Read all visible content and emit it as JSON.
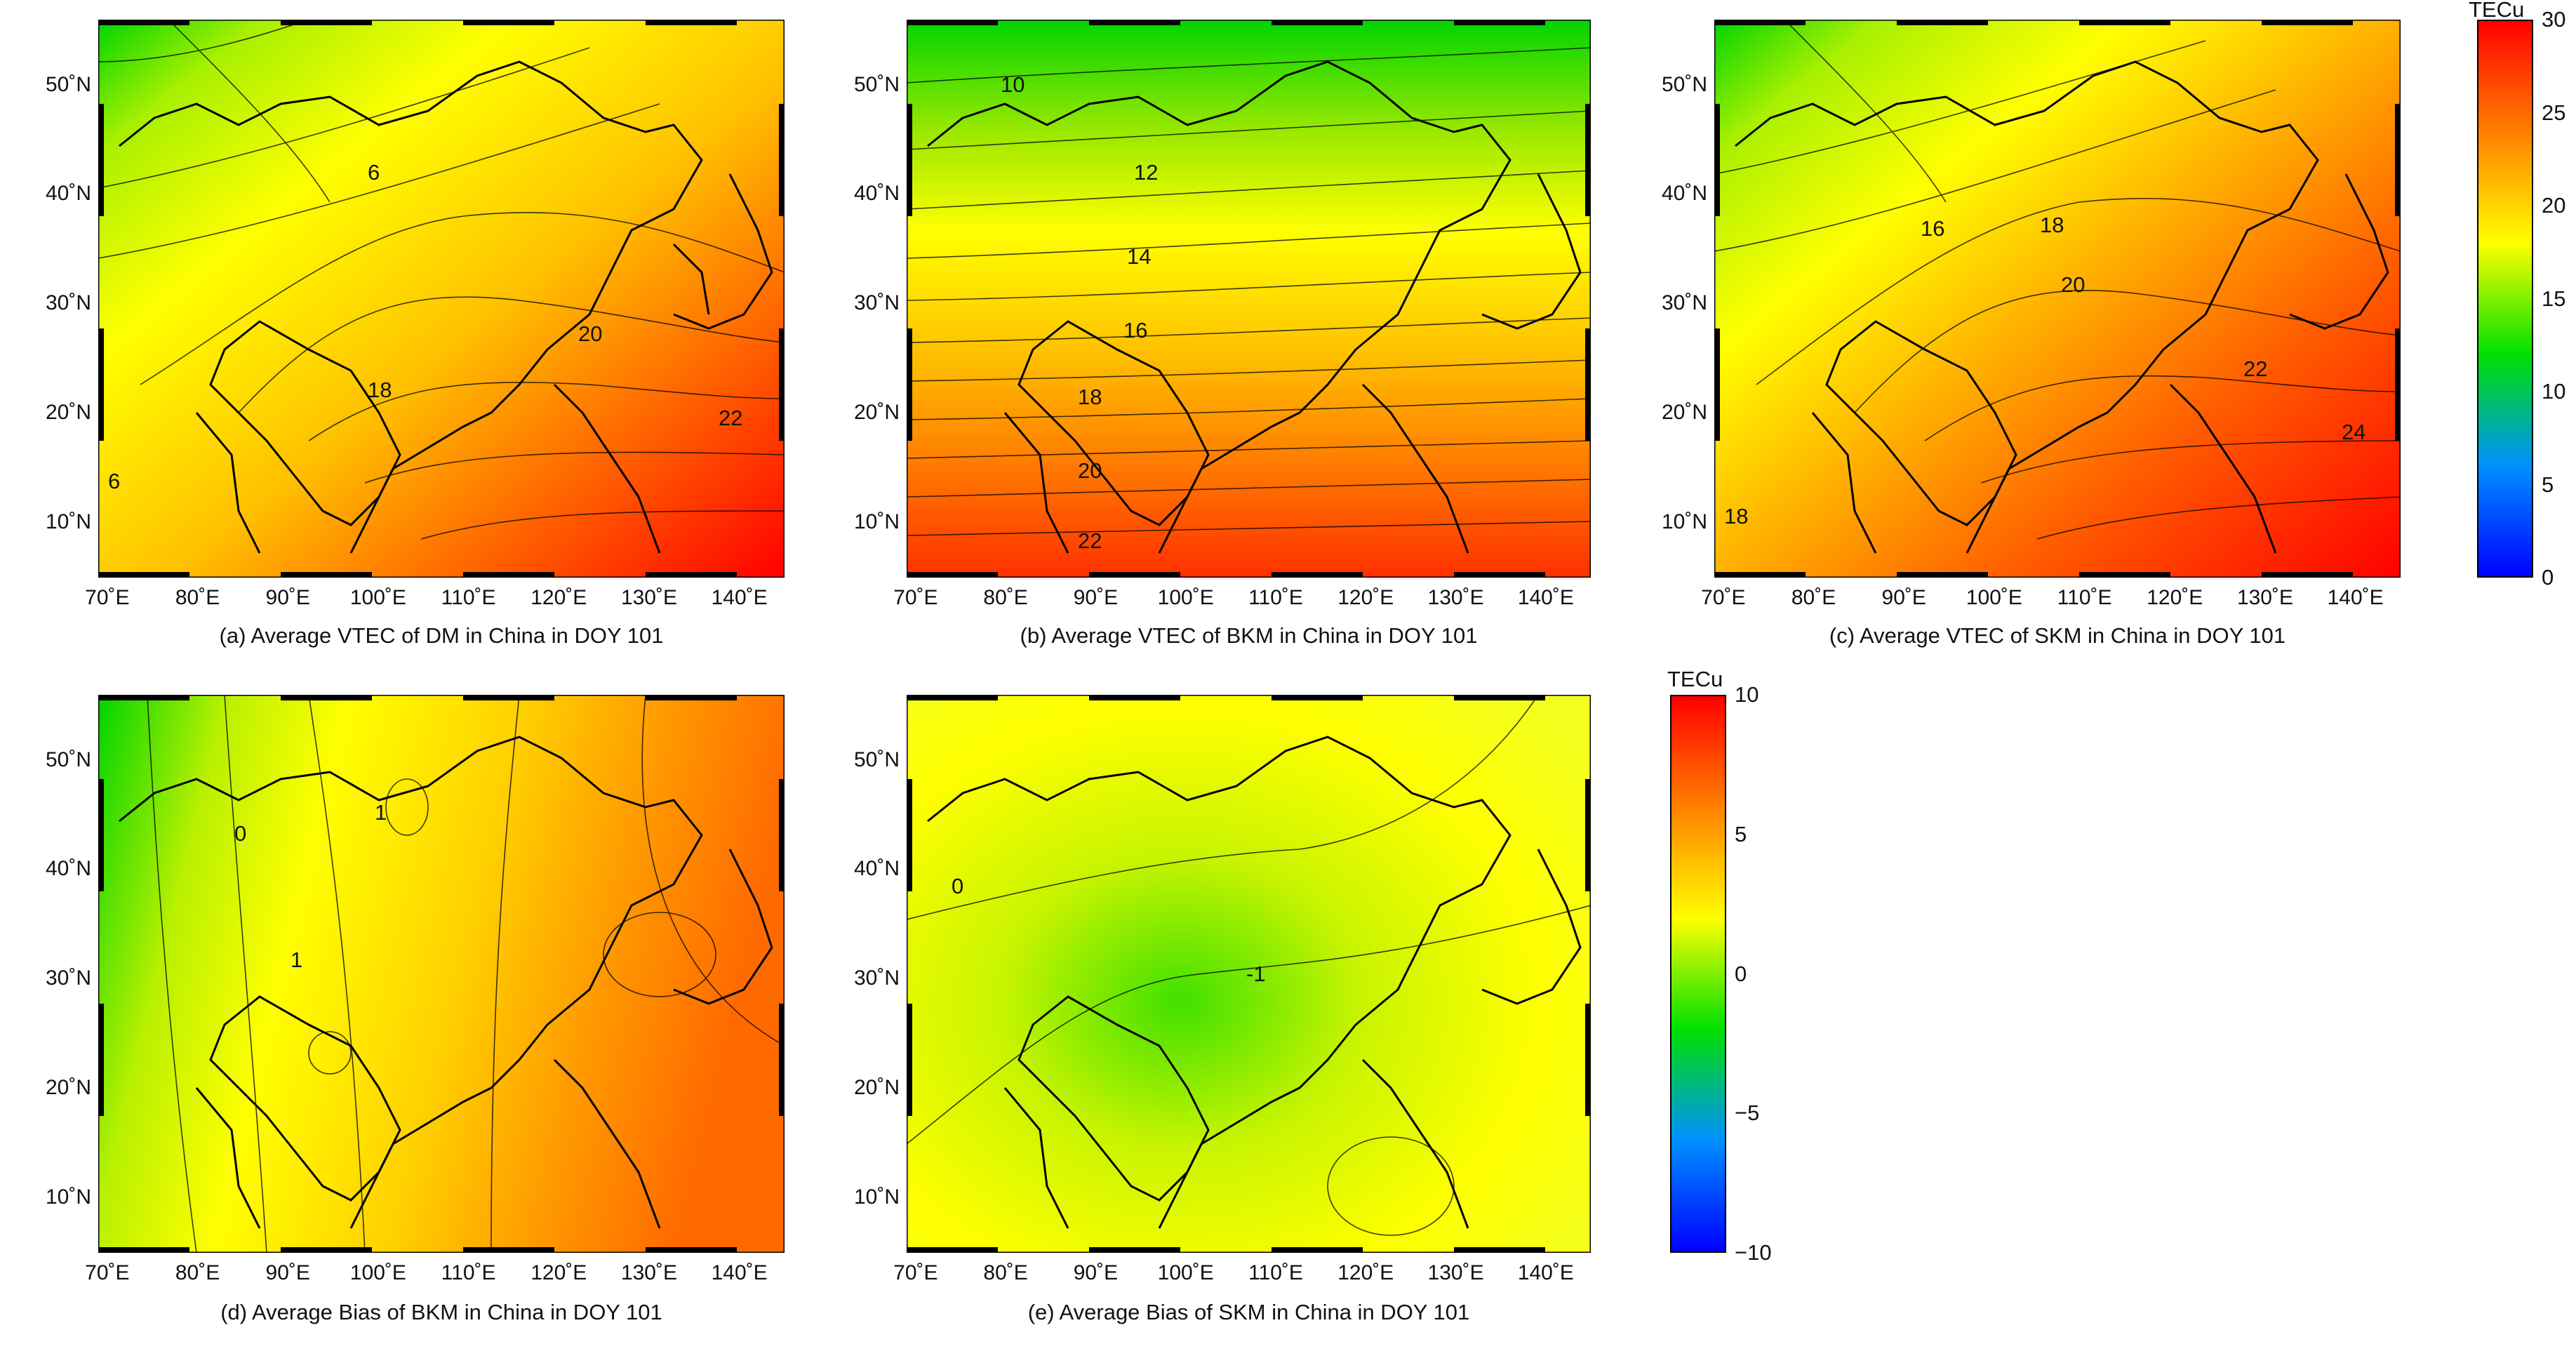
{
  "colorbars": [
    {
      "unit": "TECu",
      "min": 0,
      "max": 30,
      "ticks": [
        "30",
        "25",
        "20",
        "15",
        "10",
        "5",
        "0"
      ],
      "colors": [
        "#ff0000",
        "#ff8000",
        "#ffff00",
        "#00e000",
        "#0090ff",
        "#0000ff"
      ]
    },
    {
      "unit": "TECu",
      "min": -10,
      "max": 10,
      "ticks": [
        "10",
        "5",
        "0",
        "−5",
        "−10"
      ],
      "colors": [
        "#ff0000",
        "#ff8000",
        "#ffff00",
        "#00e000",
        "#0090ff",
        "#0000ff"
      ]
    }
  ],
  "axes": {
    "lat_labels": [
      "50˚N",
      "40˚N",
      "30˚N",
      "20˚N",
      "10˚N"
    ],
    "lon_labels": [
      "70˚E",
      "80˚E",
      "90˚E",
      "100˚E",
      "110˚E",
      "120˚E",
      "130˚E",
      "140˚E"
    ],
    "lat_range": [
      5,
      56
    ],
    "lon_range": [
      69,
      145
    ]
  },
  "panels": [
    {
      "caption": "(a) Average VTEC of DM in China in DOY 101",
      "contour_labels": [
        "6",
        "20",
        "18",
        "22",
        "6"
      ],
      "scale": 0
    },
    {
      "caption": "(b) Average VTEC of BKM in China in DOY 101",
      "contour_labels": [
        "10",
        "12",
        "14",
        "16",
        "18",
        "20",
        "22"
      ],
      "scale": 0
    },
    {
      "caption": "(c) Average VTEC of SKM in China in DOY 101",
      "contour_labels": [
        "16",
        "18",
        "20",
        "22",
        "24",
        "18"
      ],
      "scale": 0
    },
    {
      "caption": "(d) Average Bias of BKM in China in DOY 101",
      "contour_labels": [
        "0",
        "1",
        "1"
      ],
      "scale": 1
    },
    {
      "caption": "(e) Average Bias of SKM in China in DOY 101",
      "contour_labels": [
        "0",
        "-1"
      ],
      "scale": 1
    }
  ]
}
